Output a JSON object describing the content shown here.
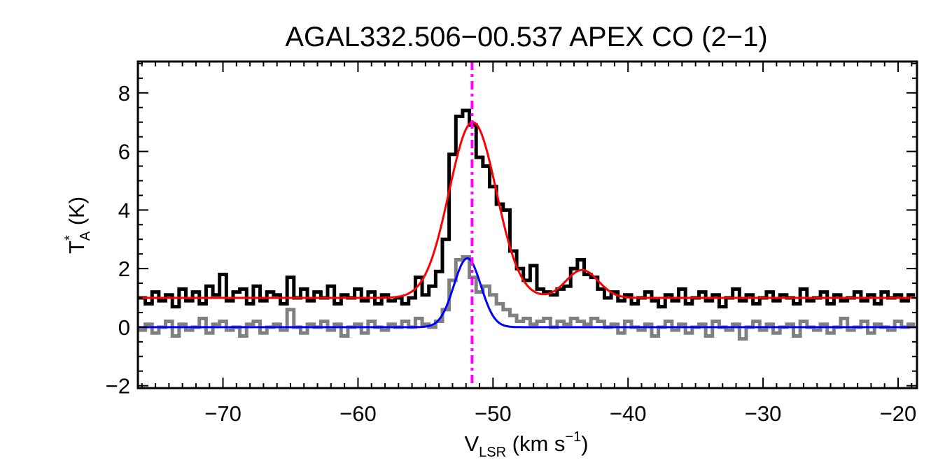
{
  "chart_data": {
    "type": "line",
    "title": "AGAL332.506−00.537  APEX CO (2−1)",
    "xlabel": {
      "main": "V",
      "sub": "LSR",
      "unit_pre": " (km s",
      "sup": "−1",
      "unit_post": ")"
    },
    "ylabel": {
      "main": "T",
      "sup": "*",
      "sub": "A",
      "unit": " (K)"
    },
    "xlim": [
      -76.3,
      -18.6
    ],
    "ylim": [
      -2.08,
      9.07
    ],
    "xticks": [
      -70,
      -60,
      -50,
      -40,
      -30,
      -20
    ],
    "xtick_labels": [
      "−70",
      "−60",
      "−50",
      "−40",
      "−30",
      "−20"
    ],
    "yticks": [
      -2,
      0,
      2,
      4,
      6,
      8
    ],
    "ytick_labels": [
      "−2",
      "0",
      "2",
      "4",
      "6",
      "8"
    ],
    "grid": false,
    "x_start": -76,
    "x_step": 0.5,
    "series": [
      {
        "style": "histogram",
        "color": "#000000",
        "values": [
          1.0,
          0.8,
          1.2,
          0.9,
          1.1,
          0.7,
          1.3,
          0.9,
          1.2,
          0.8,
          1.4,
          1.1,
          1.8,
          0.9,
          1.2,
          1.3,
          0.8,
          1.4,
          0.9,
          1.2,
          1.1,
          0.8,
          1.7,
          1.0,
          1.3,
          0.9,
          1.2,
          1.0,
          1.4,
          0.8,
          1.1,
          1.0,
          1.3,
          0.9,
          1.2,
          0.8,
          1.1,
          0.9,
          1.0,
          0.8,
          1.0,
          1.7,
          1.1,
          1.4,
          1.9,
          3.0,
          5.9,
          7.2,
          7.4,
          6.9,
          5.8,
          5.5,
          4.8,
          4.2,
          4.0,
          2.6,
          2.0,
          1.6,
          2.1,
          1.3,
          1.2,
          1.1,
          1.3,
          1.4,
          2.0,
          2.3,
          1.8,
          1.7,
          1.3,
          1.0,
          1.2,
          0.9,
          1.1,
          0.8,
          1.0,
          1.2,
          0.9,
          0.7,
          1.1,
          0.9,
          1.3,
          0.8,
          1.0,
          1.2,
          0.9,
          1.1,
          0.7,
          1.0,
          1.3,
          0.9,
          1.1,
          0.8,
          1.0,
          1.2,
          0.9,
          1.1,
          1.0,
          0.8,
          1.3,
          0.9,
          1.0,
          1.2,
          0.8,
          1.1,
          0.9,
          1.0,
          1.2,
          0.9,
          1.1,
          0.8,
          1.2,
          1.0,
          1.1,
          0.9,
          1.1
        ]
      },
      {
        "style": "histogram",
        "color": "#808080",
        "values": [
          -0.1,
          0.1,
          -0.2,
          0.0,
          0.2,
          -0.3,
          0.1,
          -0.1,
          0.0,
          0.3,
          -0.2,
          0.1,
          0.2,
          -0.1,
          0.0,
          -0.3,
          0.1,
          0.2,
          -0.2,
          0.0,
          0.1,
          -0.1,
          0.6,
          0.0,
          -0.2,
          0.1,
          0.0,
          0.2,
          -0.1,
          0.1,
          -0.3,
          0.0,
          0.1,
          -0.2,
          0.2,
          0.0,
          -0.1,
          0.1,
          0.0,
          0.2,
          0.0,
          0.3,
          0.1,
          0.0,
          0.2,
          0.6,
          1.6,
          2.3,
          2.4,
          1.7,
          1.2,
          1.4,
          1.1,
          0.8,
          0.6,
          0.4,
          0.2,
          0.3,
          0.1,
          0.2,
          0.3,
          0.0,
          0.2,
          0.1,
          0.3,
          0.2,
          0.1,
          0.3,
          0.2,
          0.0,
          0.1,
          -0.2,
          0.2,
          0.0,
          -0.1,
          0.1,
          -0.3,
          0.0,
          0.2,
          -0.1,
          0.1,
          -0.2,
          0.0,
          0.1,
          -0.3,
          0.2,
          0.0,
          -0.1,
          0.1,
          -0.4,
          0.0,
          0.2,
          -0.1,
          0.1,
          -0.2,
          0.0,
          0.1,
          -0.3,
          0.2,
          0.0,
          -0.1,
          0.1,
          -0.2,
          0.0,
          0.3,
          -0.1,
          0.0,
          0.2,
          -0.2,
          0.1,
          0.0,
          -0.1,
          0.2,
          0.0,
          0.1
        ]
      }
    ],
    "fits": [
      {
        "color": "#ff0000",
        "baseline": 1.0,
        "components": [
          {
            "amp": 6.0,
            "center": -51.5,
            "sigma": 1.75
          },
          {
            "amp": 0.95,
            "center": -43.4,
            "sigma": 1.2
          }
        ]
      },
      {
        "color": "#0000ff",
        "baseline": 0.0,
        "components": [
          {
            "amp": 2.35,
            "center": -51.9,
            "sigma": 1.0
          }
        ]
      }
    ],
    "vline": {
      "x": -51.55,
      "color": "#ff00ff",
      "style": "dash-dot"
    }
  }
}
